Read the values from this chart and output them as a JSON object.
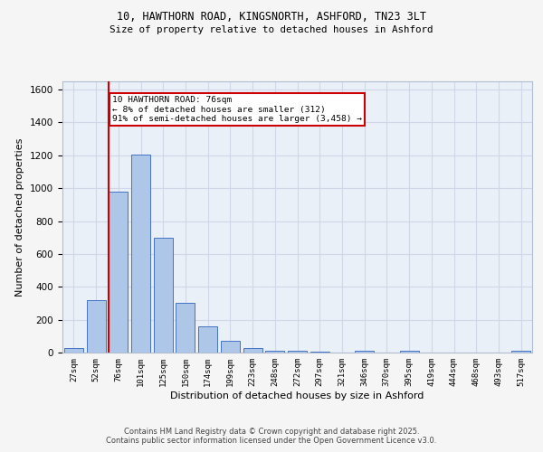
{
  "title_line1": "10, HAWTHORN ROAD, KINGSNORTH, ASHFORD, TN23 3LT",
  "title_line2": "Size of property relative to detached houses in Ashford",
  "xlabel": "Distribution of detached houses by size in Ashford",
  "ylabel": "Number of detached properties",
  "bar_labels": [
    "27sqm",
    "52sqm",
    "76sqm",
    "101sqm",
    "125sqm",
    "150sqm",
    "174sqm",
    "199sqm",
    "223sqm",
    "248sqm",
    "272sqm",
    "297sqm",
    "321sqm",
    "346sqm",
    "370sqm",
    "395sqm",
    "419sqm",
    "444sqm",
    "468sqm",
    "493sqm",
    "517sqm"
  ],
  "bar_values": [
    25,
    320,
    980,
    1205,
    700,
    305,
    160,
    73,
    28,
    12,
    10,
    7,
    0,
    10,
    0,
    12,
    0,
    0,
    0,
    0,
    10
  ],
  "bar_color": "#aec6e8",
  "bar_edge_color": "#4472c4",
  "red_line_index": 2,
  "annotation_text": "10 HAWTHORN ROAD: 76sqm\n← 8% of detached houses are smaller (312)\n91% of semi-detached houses are larger (3,458) →",
  "annotation_box_color": "#ffffff",
  "annotation_box_edge_color": "#cc0000",
  "ylim": [
    0,
    1650
  ],
  "yticks": [
    0,
    200,
    400,
    600,
    800,
    1000,
    1200,
    1400,
    1600
  ],
  "grid_color": "#d0d8e8",
  "bg_color": "#eaf0f8",
  "fig_bg_color": "#f5f5f5",
  "footer_line1": "Contains HM Land Registry data © Crown copyright and database right 2025.",
  "footer_line2": "Contains public sector information licensed under the Open Government Licence v3.0."
}
